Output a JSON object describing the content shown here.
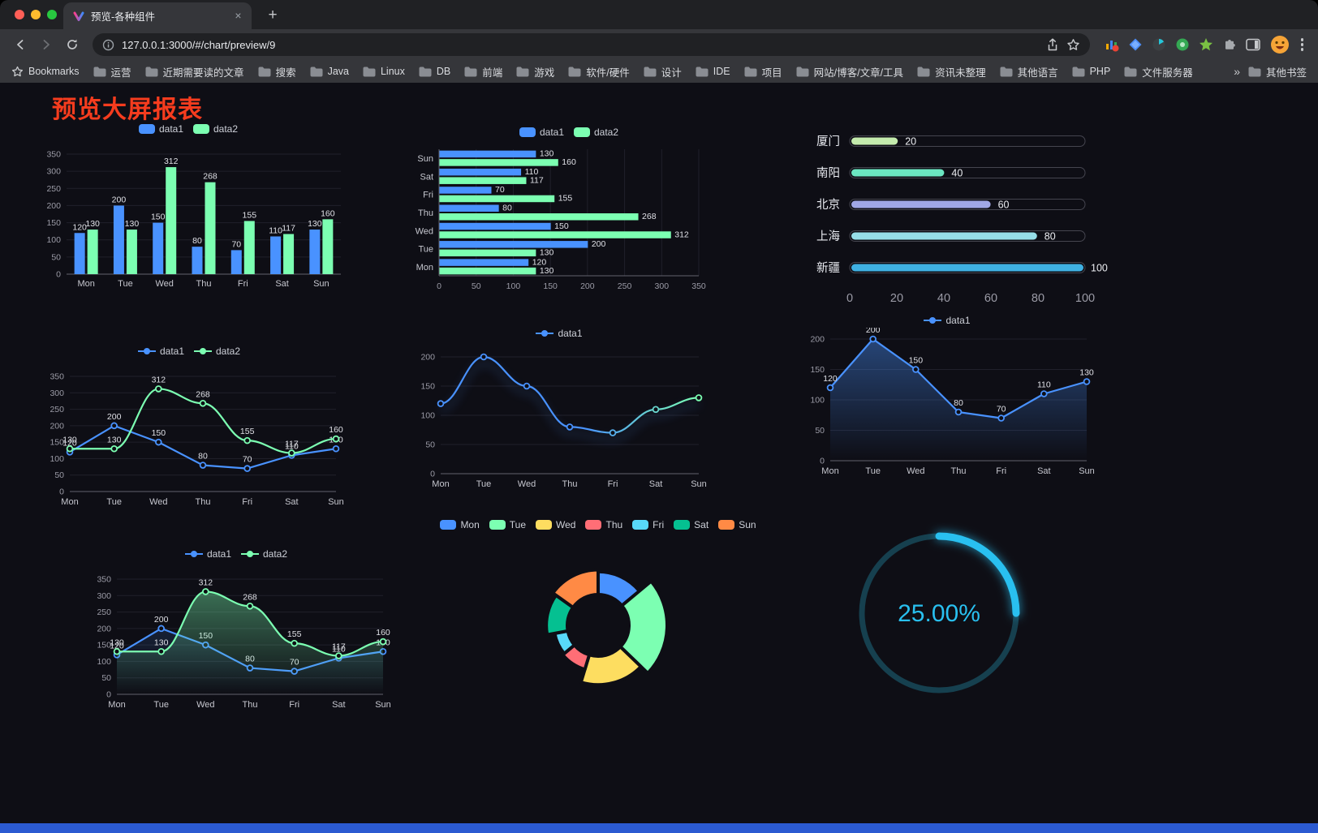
{
  "browser": {
    "tab_title": "预览-各种组件",
    "url": "127.0.0.1:3000/#/chart/preview/9",
    "icons": {
      "close_tab": "×",
      "new_tab": "+"
    },
    "bookmarks_label": "Bookmarks",
    "bookmarks": [
      "运营",
      "近期需要读的文章",
      "搜索",
      "Java",
      "Linux",
      "DB",
      "前端",
      "游戏",
      "软件/硬件",
      "设计",
      "IDE",
      "项目",
      "网站/博客/文章/工具",
      "资讯未整理",
      "其他语言",
      "PHP",
      "文件服务器"
    ],
    "bookmarks_overflow": "»",
    "other_bookmarks": "其他书签"
  },
  "page": {
    "title": "预览大屏报表",
    "title_color": "#f63c1e",
    "background": "#0e0e15",
    "bottom_bar_color": "#2b5ad1"
  },
  "chart_data": [
    {
      "id": "bar-grouped",
      "type": "bar",
      "categories": [
        "Mon",
        "Tue",
        "Wed",
        "Thu",
        "Fri",
        "Sat",
        "Sun"
      ],
      "series": [
        {
          "name": "data1",
          "color": "#4992ff",
          "values": [
            120,
            200,
            150,
            80,
            70,
            110,
            130
          ]
        },
        {
          "name": "data2",
          "color": "#7cffb2",
          "values": [
            130,
            130,
            312,
            268,
            155,
            117,
            160
          ]
        }
      ],
      "ylim": [
        0,
        350
      ],
      "ytick": 50
    },
    {
      "id": "bar-horizontal",
      "type": "hbar",
      "categories": [
        "Mon",
        "Tue",
        "Wed",
        "Thu",
        "Fri",
        "Sat",
        "Sun"
      ],
      "series": [
        {
          "name": "data1",
          "color": "#4992ff",
          "values": [
            120,
            200,
            150,
            80,
            70,
            110,
            130
          ]
        },
        {
          "name": "data2",
          "color": "#7cffb2",
          "values": [
            130,
            130,
            312,
            268,
            155,
            117,
            160
          ]
        }
      ],
      "xlim": [
        0,
        350
      ],
      "xtick": 50
    },
    {
      "id": "capsule",
      "type": "capsule",
      "rows": [
        {
          "name": "厦门",
          "value": 20,
          "color": "#c4ebad"
        },
        {
          "name": "南阳",
          "value": 40,
          "color": "#6be6c1"
        },
        {
          "name": "北京",
          "value": 60,
          "color": "#a0a7e6"
        },
        {
          "name": "上海",
          "value": 80,
          "color": "#96dee8"
        },
        {
          "name": "新疆",
          "value": 100,
          "color": "#3fb1e3"
        }
      ],
      "xlim": [
        0,
        100
      ],
      "xticks": [
        0,
        20,
        40,
        60,
        80,
        100
      ]
    },
    {
      "id": "line-double",
      "type": "line",
      "categories": [
        "Mon",
        "Tue",
        "Wed",
        "Thu",
        "Fri",
        "Sat",
        "Sun"
      ],
      "series": [
        {
          "name": "data1",
          "color": "#4992ff",
          "values": [
            120,
            200,
            150,
            80,
            70,
            110,
            130
          ],
          "smooth": false,
          "labels": true
        },
        {
          "name": "data2",
          "color": "#7cffb2",
          "values": [
            130,
            130,
            312,
            268,
            155,
            117,
            160
          ],
          "smooth": true,
          "labels": true
        }
      ],
      "ylim": [
        0,
        350
      ],
      "ytick": 50
    },
    {
      "id": "line-gradient",
      "type": "line",
      "categories": [
        "Mon",
        "Tue",
        "Wed",
        "Thu",
        "Fri",
        "Sat",
        "Sun"
      ],
      "series": [
        {
          "name": "data1",
          "color": "#4992ff",
          "gradient": [
            "#4992ff",
            "#7cffb2"
          ],
          "values": [
            120,
            200,
            150,
            80,
            70,
            110,
            130
          ],
          "smooth": true,
          "labels": false,
          "glow": true
        }
      ],
      "ylim": [
        0,
        200
      ],
      "ytick": 50
    },
    {
      "id": "line-area",
      "type": "line",
      "categories": [
        "Mon",
        "Tue",
        "Wed",
        "Thu",
        "Fri",
        "Sat",
        "Sun"
      ],
      "series": [
        {
          "name": "data1",
          "color": "#4992ff",
          "values": [
            120,
            200,
            150,
            80,
            70,
            110,
            130
          ],
          "smooth": false,
          "labels": true,
          "area": 0.42
        }
      ],
      "ylim": [
        0,
        200
      ],
      "ytick": 50
    },
    {
      "id": "line-double-area",
      "type": "line",
      "categories": [
        "Mon",
        "Tue",
        "Wed",
        "Thu",
        "Fri",
        "Sat",
        "Sun"
      ],
      "series": [
        {
          "name": "data1",
          "color": "#4992ff",
          "values": [
            120,
            200,
            150,
            80,
            70,
            110,
            130
          ],
          "smooth": false,
          "labels": true,
          "area": 0.14
        },
        {
          "name": "data2",
          "color": "#7cffb2",
          "values": [
            130,
            130,
            312,
            268,
            155,
            117,
            160
          ],
          "smooth": true,
          "labels": true,
          "area": 0.4
        }
      ],
      "ylim": [
        0,
        350
      ],
      "ytick": 50
    },
    {
      "id": "pie-rose",
      "type": "pie",
      "items": [
        {
          "name": "Mon",
          "value": 120,
          "color": "#4992ff"
        },
        {
          "name": "Tue",
          "value": 200,
          "color": "#7cffb2"
        },
        {
          "name": "Wed",
          "value": 150,
          "color": "#fddd60"
        },
        {
          "name": "Thu",
          "value": 80,
          "color": "#ff6e76"
        },
        {
          "name": "Fri",
          "value": 70,
          "color": "#58d9f9"
        },
        {
          "name": "Sat",
          "value": 110,
          "color": "#05c091"
        },
        {
          "name": "Sun",
          "value": 130,
          "color": "#ff8a45"
        }
      ]
    },
    {
      "id": "gauge",
      "type": "gauge",
      "value": 25,
      "label": "25.00%",
      "color": "#29c0f0",
      "track": "#16404f"
    }
  ]
}
